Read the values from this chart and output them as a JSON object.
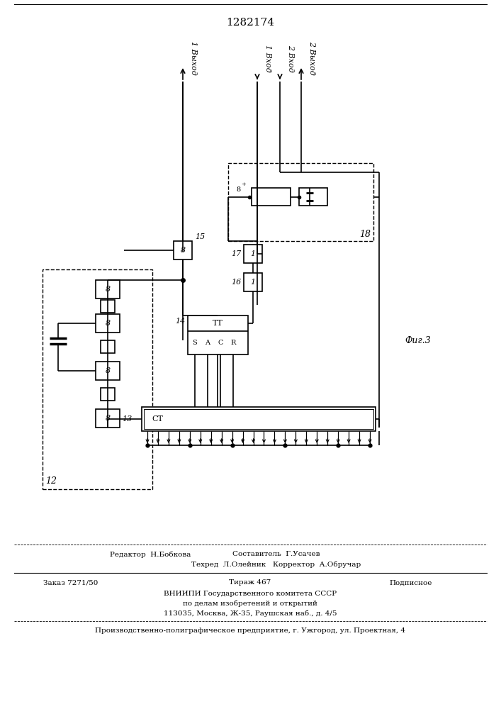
{
  "title": "1282174",
  "fig_label": "Фиг.3",
  "background_color": "#ffffff",
  "line_color": "#000000",
  "line_width": 1.2,
  "page_width": 7.07,
  "page_height": 10.0,
  "footer_editor": "Редактор  Н.Бобкова",
  "footer_compiler": "Составитель  Г.Усачев",
  "footer_tech": "Техред  Л.Олейник   Корректор  А.Обручар",
  "footer_order": "Заказ 7271/50",
  "footer_tirazh": "Тираж 467",
  "footer_podp": "Подписное",
  "footer_vniip1": "ВНИИПИ Государственного комитета СССР",
  "footer_vniip2": "по делам изобретений и открытий",
  "footer_vniip3": "113035, Москва, Ж-35, Раушская наб., д. 4/5",
  "footer_prod": "Производственно-полиграфическое предприятие, г. Ужгород, ул. Проектная, 4"
}
